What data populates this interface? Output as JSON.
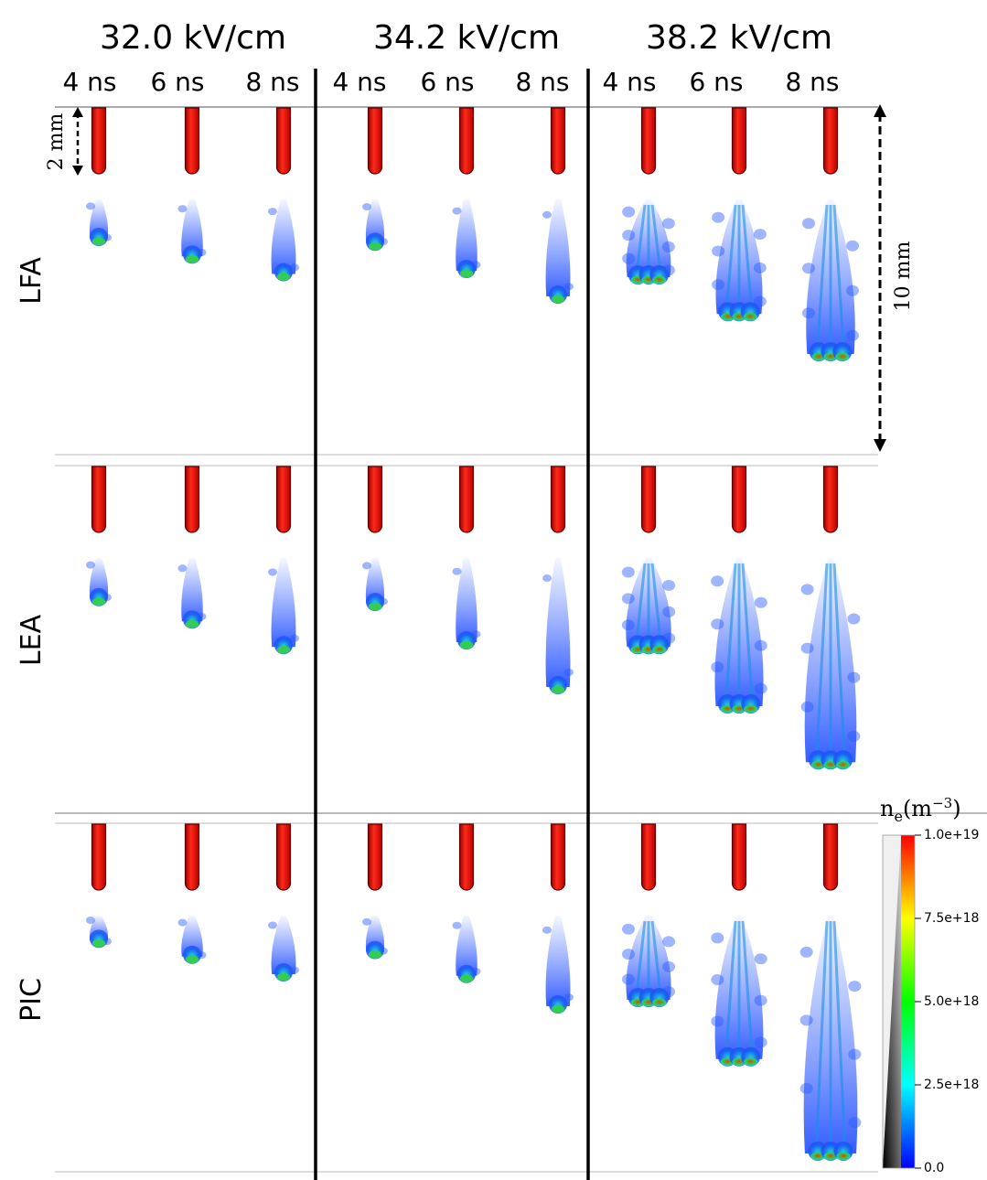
{
  "field_headers": [
    "32.0 kV/cm",
    "34.2 kV/cm",
    "38.2 kV/cm"
  ],
  "time_labels": [
    "4 ns",
    "6 ns",
    "8 ns"
  ],
  "row_labels": [
    "LFA",
    "LEA",
    "PIC"
  ],
  "scale_small": "2 mm",
  "scale_large": "10 mm",
  "colorbar": {
    "variable": "n",
    "subscript": "e",
    "unit_prefix": "(m",
    "unit_exponent": "−3",
    "unit_suffix": ")",
    "ticks": [
      "1.0e+19",
      "7.5e+18",
      "5.0e+18",
      "2.5e+18",
      "0.0"
    ]
  },
  "colors": {
    "electrode": "#e01010",
    "electrode_dark": "#6a0000",
    "streamer_blue": "#1e4cff",
    "streamer_cyan": "#1ad6dc",
    "streamer_green": "#35d030",
    "streamer_red": "#d84010"
  },
  "streamer_length_fraction": [
    [
      [
        0.28,
        0.39,
        0.5
      ],
      [
        0.31,
        0.48,
        0.64
      ],
      [
        0.52,
        0.75,
        1.0
      ]
    ],
    [
      [
        0.29,
        0.43,
        0.59
      ],
      [
        0.32,
        0.56,
        0.84
      ],
      [
        0.59,
        0.96,
        1.31
      ]
    ],
    [
      [
        0.19,
        0.29,
        0.4
      ],
      [
        0.26,
        0.41,
        0.6
      ],
      [
        0.56,
        0.93,
        1.52
      ]
    ]
  ]
}
